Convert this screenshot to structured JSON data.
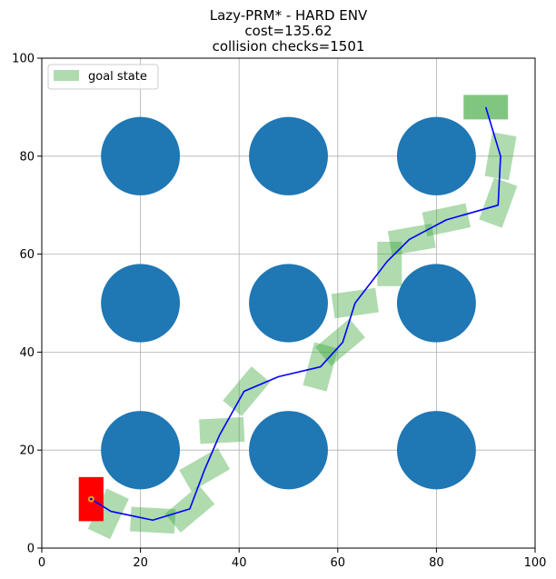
{
  "chart_data": {
    "type": "scatter",
    "title_lines": [
      "Lazy-PRM* - HARD ENV",
      "cost=135.62",
      "collision checks=1501"
    ],
    "xlabel": "",
    "ylabel": "",
    "xlim": [
      0,
      100
    ],
    "ylim": [
      0,
      100
    ],
    "xticks": [
      0,
      20,
      40,
      60,
      80,
      100
    ],
    "yticks": [
      0,
      20,
      40,
      60,
      80,
      100
    ],
    "grid": true,
    "legend": {
      "position": "top-left",
      "entries": [
        {
          "label": "goal state",
          "color": "#2ca02c"
        }
      ]
    },
    "obstacles": {
      "shape": "circle",
      "radius": 8,
      "color": "#1f77b4",
      "centers": [
        [
          20,
          80
        ],
        [
          50,
          80
        ],
        [
          80,
          80
        ],
        [
          20,
          50
        ],
        [
          50,
          50
        ],
        [
          80,
          50
        ],
        [
          20,
          20
        ],
        [
          50,
          20
        ],
        [
          80,
          20
        ]
      ]
    },
    "start_state": {
      "x": 10,
      "y": 10,
      "width": 5,
      "height": 9,
      "angle": 0,
      "color": "#ff0000"
    },
    "start_marker_color": "#ff9900",
    "goal_state": {
      "x": 90,
      "y": 90,
      "width": 9,
      "height": 5,
      "angle": 0,
      "color": "#2ca02c"
    },
    "path": {
      "color": "#0000ff",
      "points": [
        [
          10,
          10
        ],
        [
          14,
          7.5
        ],
        [
          22.5,
          5.7
        ],
        [
          30,
          8
        ],
        [
          33,
          16
        ],
        [
          36,
          23
        ],
        [
          41,
          32
        ],
        [
          48,
          35
        ],
        [
          56.5,
          37
        ],
        [
          61,
          42
        ],
        [
          63.5,
          50
        ],
        [
          70,
          58.5
        ],
        [
          74.5,
          63
        ],
        [
          82,
          67
        ],
        [
          92.5,
          70
        ],
        [
          93,
          80
        ],
        [
          90,
          90
        ]
      ]
    },
    "intermediate_states": {
      "color": "#2ca02c",
      "width": 9,
      "height": 5,
      "poses": [
        [
          13.5,
          7,
          65
        ],
        [
          22.5,
          5.7,
          -3
        ],
        [
          30,
          8,
          40
        ],
        [
          33,
          16,
          30
        ],
        [
          36.5,
          24,
          3
        ],
        [
          41.5,
          32,
          50
        ],
        [
          56.5,
          37,
          75
        ],
        [
          60.5,
          42,
          40
        ],
        [
          63.5,
          50,
          8
        ],
        [
          70.5,
          58,
          90
        ],
        [
          75,
          63,
          10
        ],
        [
          82,
          67,
          12
        ],
        [
          92.5,
          70.5,
          70
        ],
        [
          93,
          80,
          80
        ]
      ]
    }
  }
}
